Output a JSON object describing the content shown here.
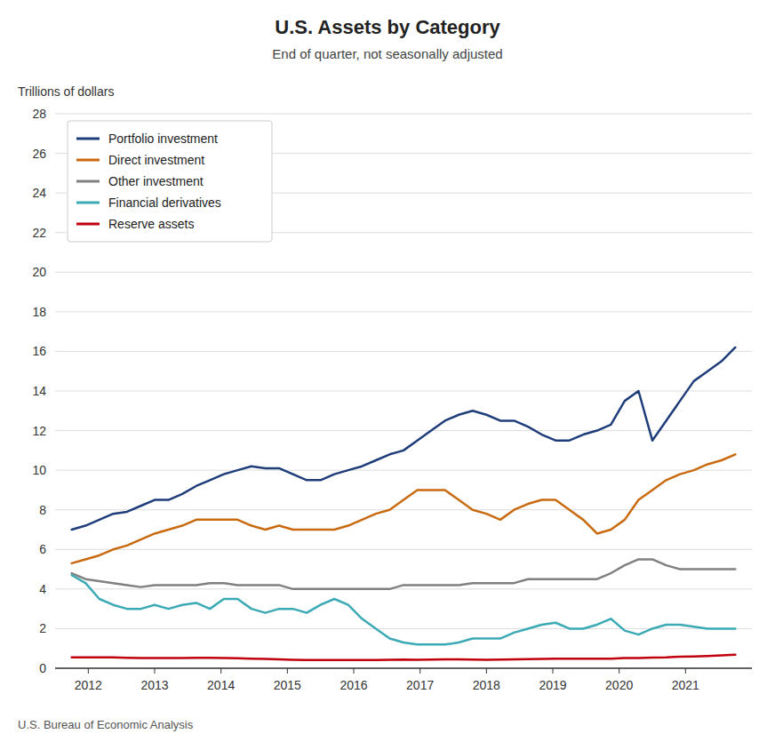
{
  "chart_data": {
    "type": "line",
    "title": "U.S. Assets by Category",
    "subtitle": "End of quarter, not seasonally adjusted",
    "ylabel": "Trillions of dollars",
    "source": "U.S. Bureau of Economic Analysis",
    "x": [
      2011.75,
      2011.9583333333333,
      2012.1666666666667,
      2012.375,
      2012.5833333333333,
      2012.7916666666667,
      2013.0,
      2013.2083333333333,
      2013.4166666666667,
      2013.625,
      2013.8333333333333,
      2014.0416666666667,
      2014.25,
      2014.4583333333333,
      2014.6666666666667,
      2014.875,
      2015.0833333333333,
      2015.2916666666667,
      2015.5,
      2015.7083333333333,
      2015.9166666666667,
      2016.125,
      2016.3333333333333,
      2016.5416666666667,
      2016.75,
      2016.9583333333333,
      2017.1666666666667,
      2017.375,
      2017.5833333333333,
      2017.7916666666667,
      2018.0,
      2018.2083333333333,
      2018.4166666666667,
      2018.625,
      2018.8333333333333,
      2019.0416666666667,
      2019.25,
      2019.4583333333333,
      2019.6666666666667,
      2019.875,
      2020.0833333333333,
      2020.2916666666667,
      2020.5,
      2020.7083333333333,
      2020.9166666666667,
      2021.125,
      2021.3333333333333,
      2021.5416666666667,
      2021.75
    ],
    "xlim": [
      2011.5,
      2022.0
    ],
    "xticks": [
      2012,
      2013,
      2014,
      2015,
      2016,
      2017,
      2018,
      2019,
      2020,
      2021
    ],
    "ylim": [
      0,
      28
    ],
    "yticks": [
      0,
      2,
      4,
      6,
      8,
      10,
      12,
      14,
      16,
      18,
      20,
      22,
      24,
      26,
      28
    ],
    "grid": true,
    "legend": "upper left",
    "series": [
      {
        "name": "Portfolio investment",
        "color": "#1F3D7A",
        "values": [
          7.0,
          7.2,
          7.5,
          7.8,
          7.9,
          8.2,
          8.5,
          8.5,
          8.8,
          9.2,
          9.5,
          9.8,
          10.0,
          10.2,
          10.1,
          10.1,
          9.8,
          9.5,
          9.5,
          9.8,
          10.0,
          10.2,
          10.5,
          10.8,
          11.0,
          11.5,
          12.0,
          12.5,
          12.8,
          13.0,
          12.8,
          12.5,
          12.5,
          12.2,
          11.8,
          11.5,
          11.5,
          11.8,
          12.0,
          12.3,
          13.5,
          14.0,
          11.5,
          12.5,
          13.5,
          14.5,
          15.0,
          15.5,
          16.2
        ]
      },
      {
        "name": "Direct investment",
        "color": "#C96A10",
        "values": [
          5.3,
          5.5,
          5.7,
          6.0,
          6.2,
          6.5,
          6.8,
          7.0,
          7.2,
          7.5,
          7.5,
          7.5,
          7.5,
          7.2,
          7.0,
          7.2,
          7.0,
          7.0,
          7.0,
          7.0,
          7.2,
          7.5,
          7.8,
          8.0,
          8.5,
          9.0,
          9.0,
          9.0,
          8.5,
          8.0,
          7.8,
          7.5,
          8.0,
          8.3,
          8.5,
          8.5,
          8.0,
          7.5,
          6.8,
          7.0,
          7.5,
          8.5,
          9.0,
          9.5,
          9.8,
          10.0,
          10.3,
          10.5,
          10.8
        ]
      },
      {
        "name": "Other investment",
        "color": "#808080",
        "values": [
          4.8,
          4.5,
          4.4,
          4.3,
          4.2,
          4.1,
          4.2,
          4.2,
          4.2,
          4.2,
          4.3,
          4.3,
          4.2,
          4.2,
          4.2,
          4.2,
          4.0,
          4.0,
          4.0,
          4.0,
          4.0,
          4.0,
          4.0,
          4.0,
          4.2,
          4.2,
          4.2,
          4.2,
          4.2,
          4.3,
          4.3,
          4.3,
          4.3,
          4.5,
          4.5,
          4.5,
          4.5,
          4.5,
          4.5,
          4.8,
          5.2,
          5.5,
          5.5,
          5.2,
          5.0,
          5.0,
          5.0,
          5.0,
          5.0
        ]
      },
      {
        "name": "Financial derivatives",
        "color": "#3BAAB5",
        "values": [
          4.7,
          4.3,
          3.5,
          3.2,
          3.0,
          3.0,
          3.2,
          3.0,
          3.2,
          3.3,
          3.0,
          3.5,
          3.5,
          3.0,
          2.8,
          3.0,
          3.0,
          2.8,
          3.2,
          3.5,
          3.2,
          2.5,
          2.0,
          1.5,
          1.3,
          1.2,
          1.2,
          1.2,
          1.3,
          1.5,
          1.5,
          1.5,
          1.8,
          2.0,
          2.2,
          2.3,
          2.0,
          2.0,
          2.2,
          2.5,
          1.9,
          1.7,
          2.0,
          2.2,
          2.2,
          2.1,
          2.0,
          2.0,
          2.0
        ]
      },
      {
        "name": "Reserve assets",
        "color": "#C0000C",
        "values": [
          0.55,
          0.55,
          0.55,
          0.55,
          0.53,
          0.52,
          0.52,
          0.52,
          0.52,
          0.53,
          0.53,
          0.52,
          0.5,
          0.48,
          0.47,
          0.45,
          0.43,
          0.42,
          0.42,
          0.42,
          0.42,
          0.42,
          0.42,
          0.43,
          0.44,
          0.43,
          0.44,
          0.45,
          0.45,
          0.44,
          0.43,
          0.44,
          0.45,
          0.46,
          0.47,
          0.48,
          0.48,
          0.48,
          0.48,
          0.48,
          0.52,
          0.52,
          0.54,
          0.55,
          0.58,
          0.6,
          0.62,
          0.65,
          0.68
        ]
      }
    ]
  }
}
